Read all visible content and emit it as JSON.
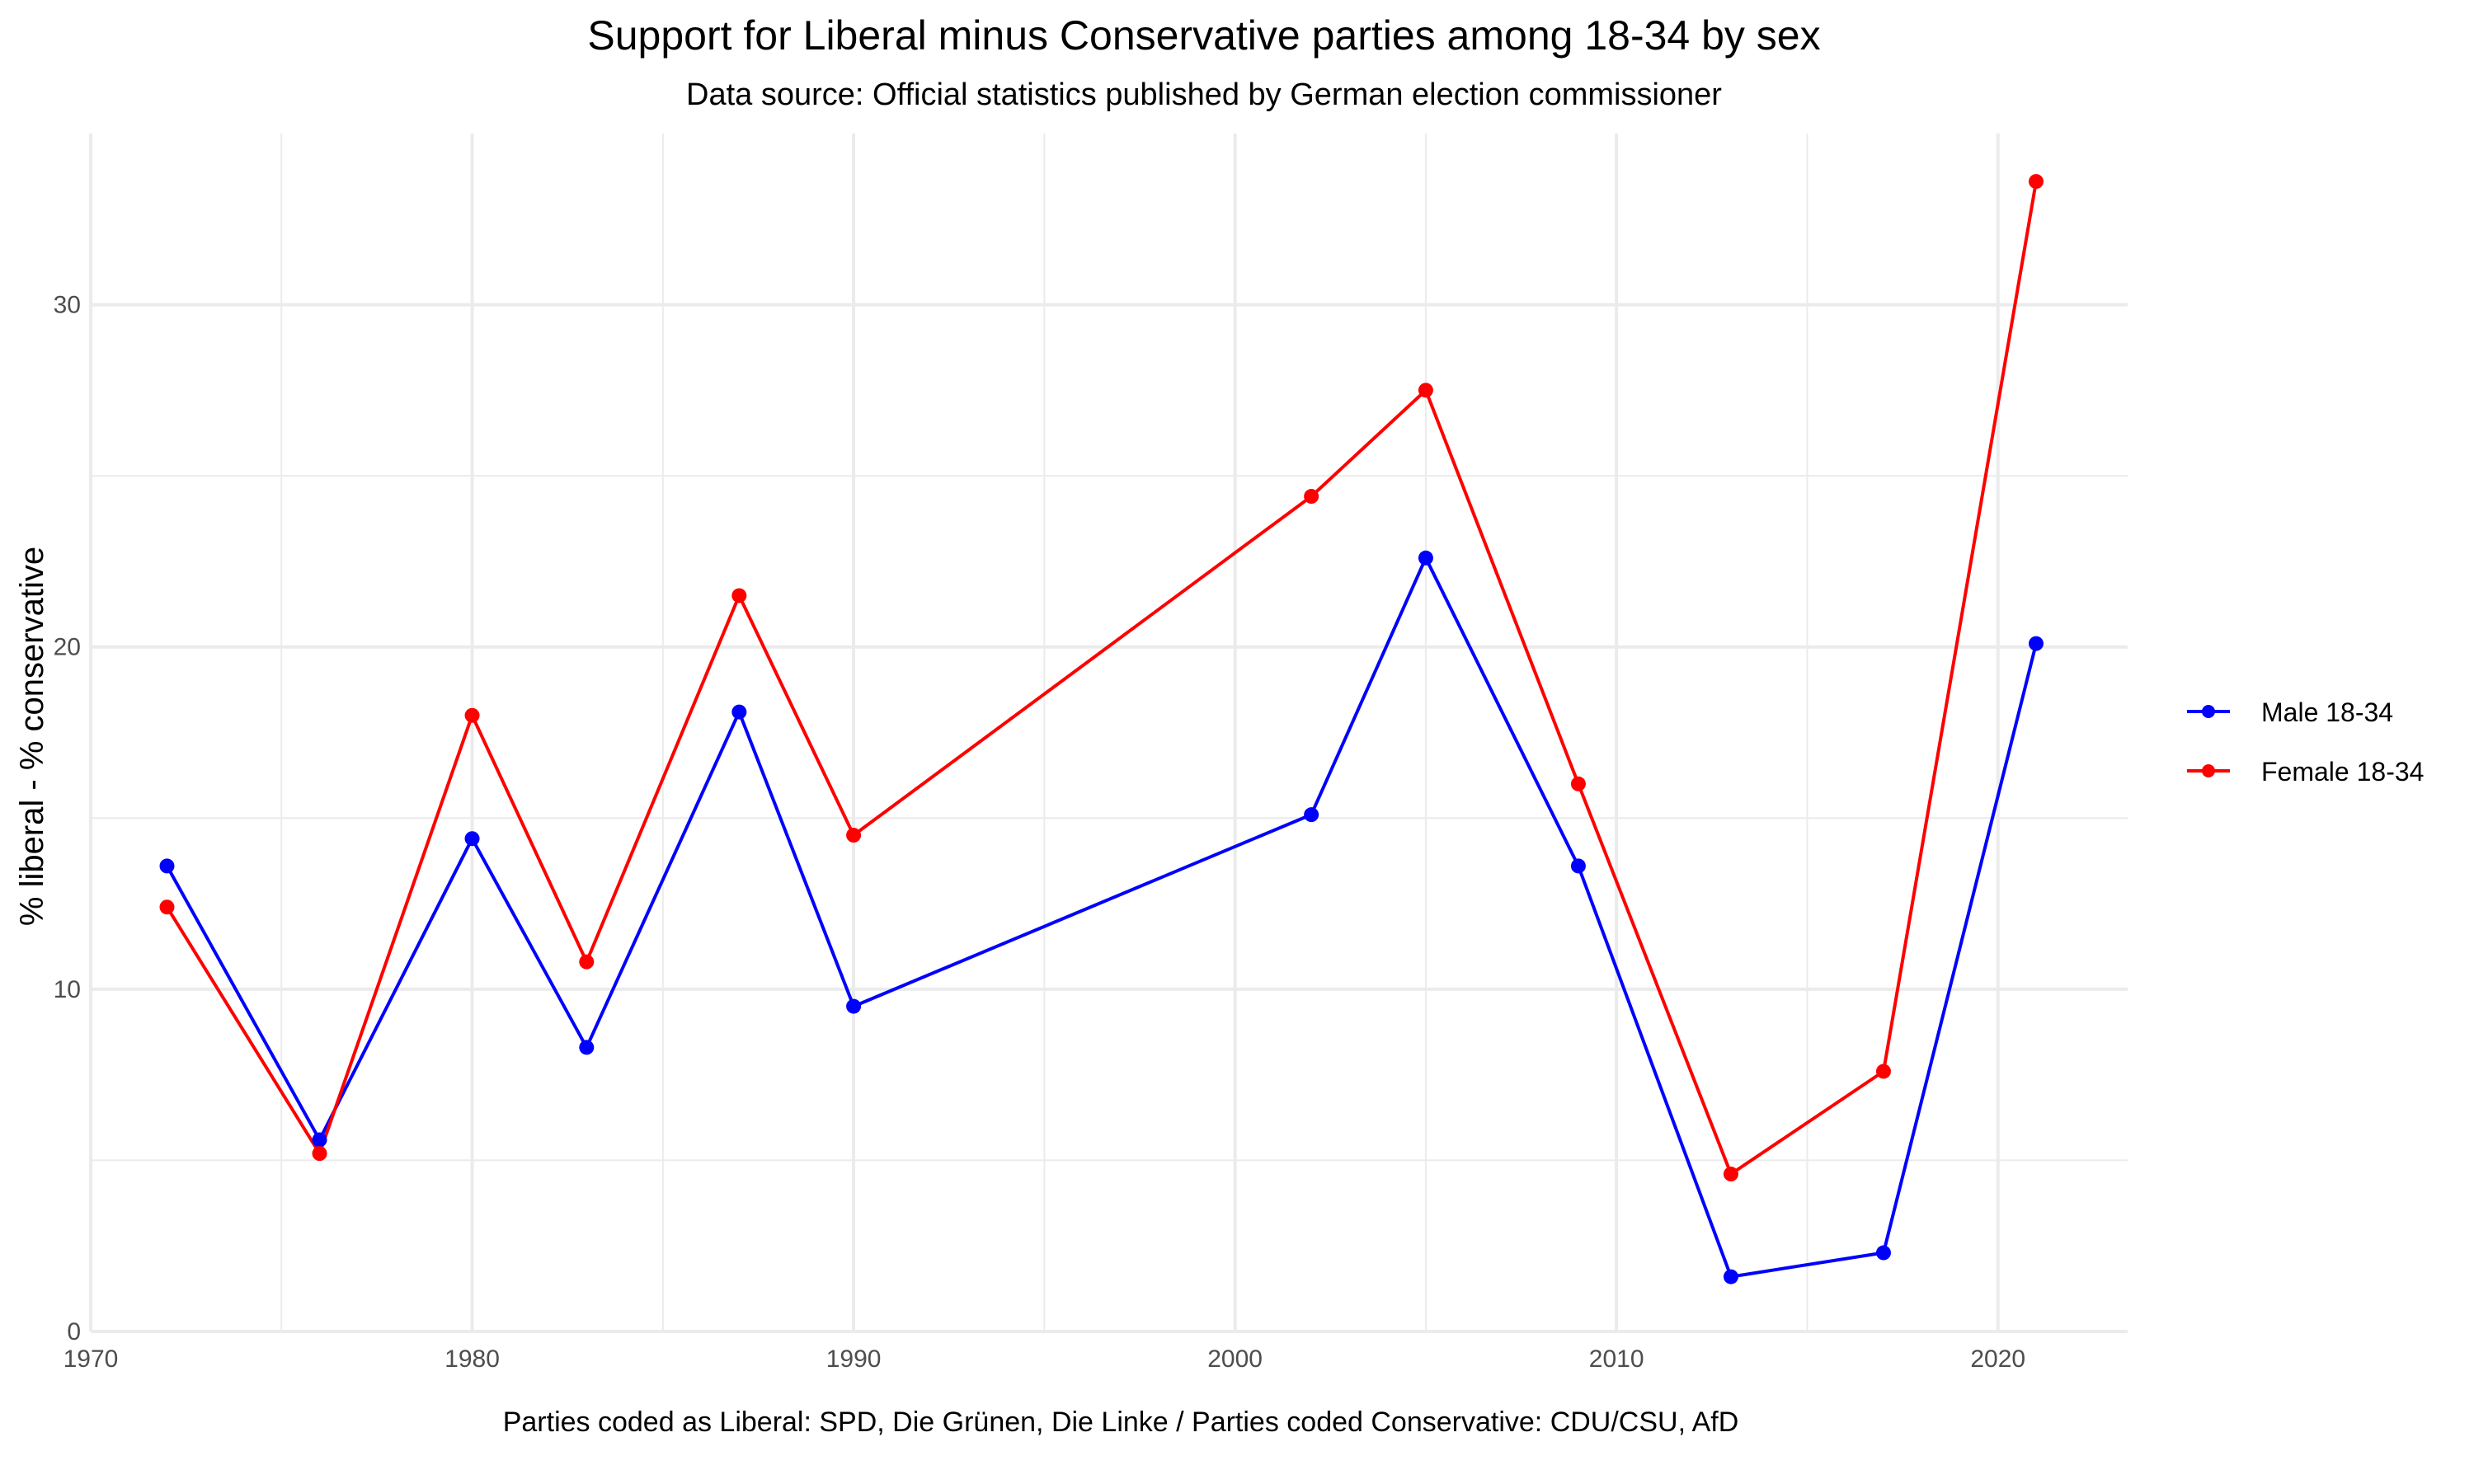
{
  "chart_data": {
    "type": "line",
    "title": "Support for Liberal minus Conservative parties among 18-34 by sex",
    "subtitle": "Data source: Official statistics published by German election commissioner",
    "caption": "Parties coded as Liberal: SPD, Die Grünen, Die Linke / Parties coded Conservative: CDU/CSU, AfD",
    "xlabel": "",
    "ylabel": "% liberal - % conservative",
    "xlim": [
      1970,
      2023.4
    ],
    "ylim": [
      0,
      35
    ],
    "x_ticks": [
      1970,
      1980,
      1990,
      2000,
      2010,
      2020
    ],
    "y_ticks": [
      0,
      10,
      20,
      30
    ],
    "grid": true,
    "legend_position": "right",
    "x": [
      1972,
      1976,
      1980,
      1983,
      1987,
      1990,
      2002,
      2005,
      2009,
      2013,
      2017,
      2021
    ],
    "series": [
      {
        "name": "Male 18-34",
        "color": "#0000ff",
        "values": [
          13.6,
          5.6,
          14.4,
          8.3,
          18.1,
          9.5,
          15.1,
          22.6,
          13.6,
          1.6,
          2.3,
          20.1
        ]
      },
      {
        "name": "Female 18-34",
        "color": "#ff0000",
        "values": [
          12.4,
          5.2,
          18.0,
          10.8,
          21.5,
          14.5,
          24.4,
          27.5,
          16.0,
          4.6,
          7.6,
          33.6
        ]
      }
    ]
  }
}
